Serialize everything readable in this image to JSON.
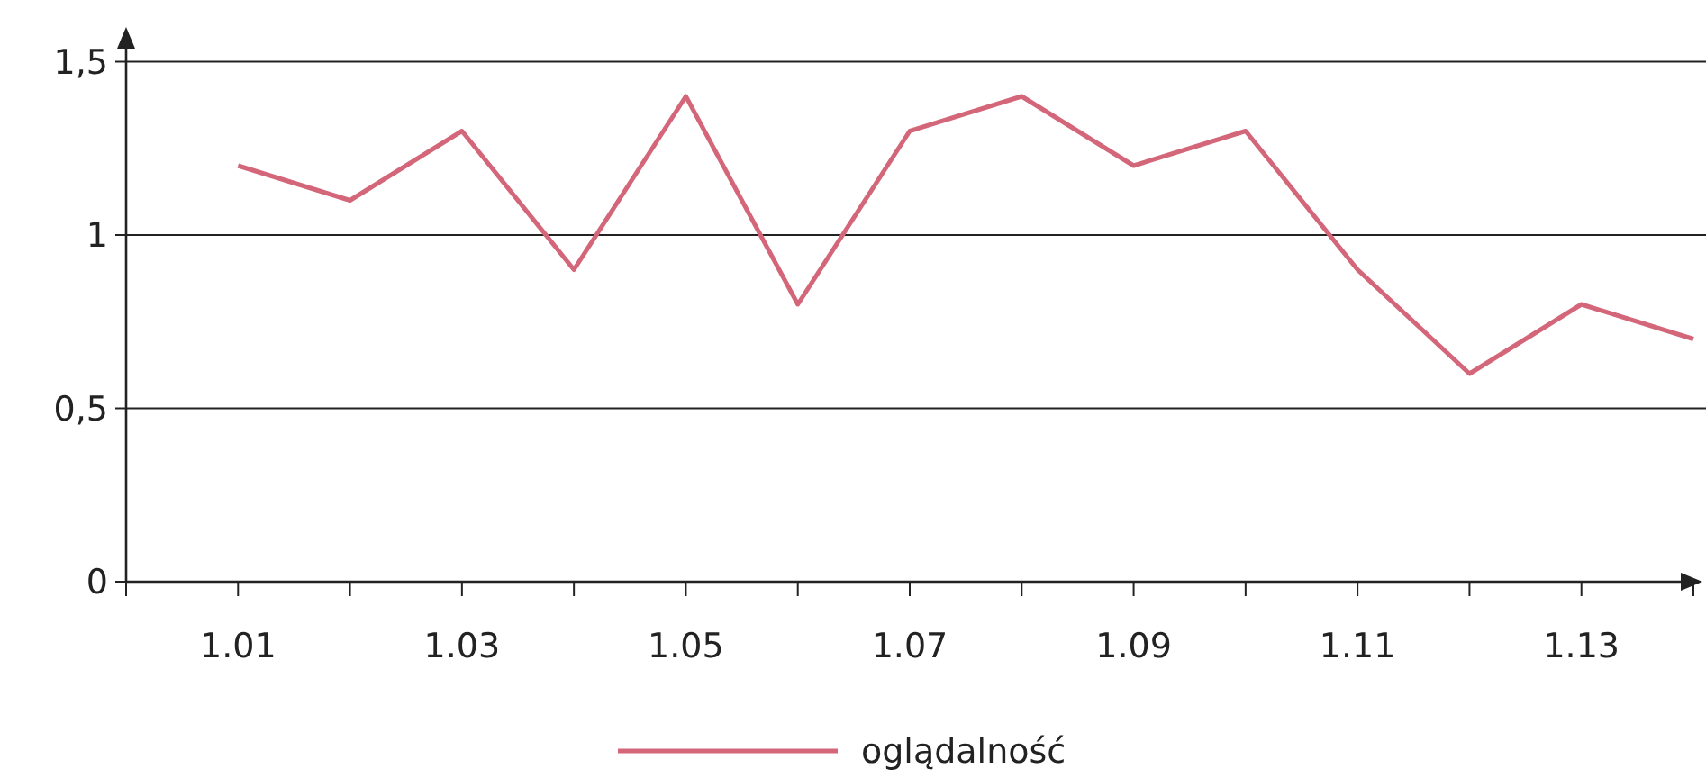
{
  "chart_data": {
    "type": "line",
    "categories": [
      "1.01",
      null,
      "1.03",
      null,
      "1.05",
      null,
      "1.07",
      null,
      "1.09",
      null,
      "1.11",
      null,
      "1.13",
      null
    ],
    "series": [
      {
        "name": "oglądalność",
        "color": "#d4667a",
        "values": [
          1.2,
          1.1,
          1.3,
          0.9,
          1.4,
          0.8,
          1.3,
          1.4,
          1.2,
          1.3,
          0.9,
          0.6,
          0.8,
          0.7
        ]
      }
    ],
    "ylim": [
      0,
      1.6
    ],
    "yticks": [
      0,
      {
        "value": 0.5,
        "label": "0,5"
      },
      1,
      {
        "value": 1.5,
        "label": "1,5"
      }
    ],
    "grid": "y",
    "legend": "bottom",
    "marker": "none",
    "line_style": "solid"
  }
}
